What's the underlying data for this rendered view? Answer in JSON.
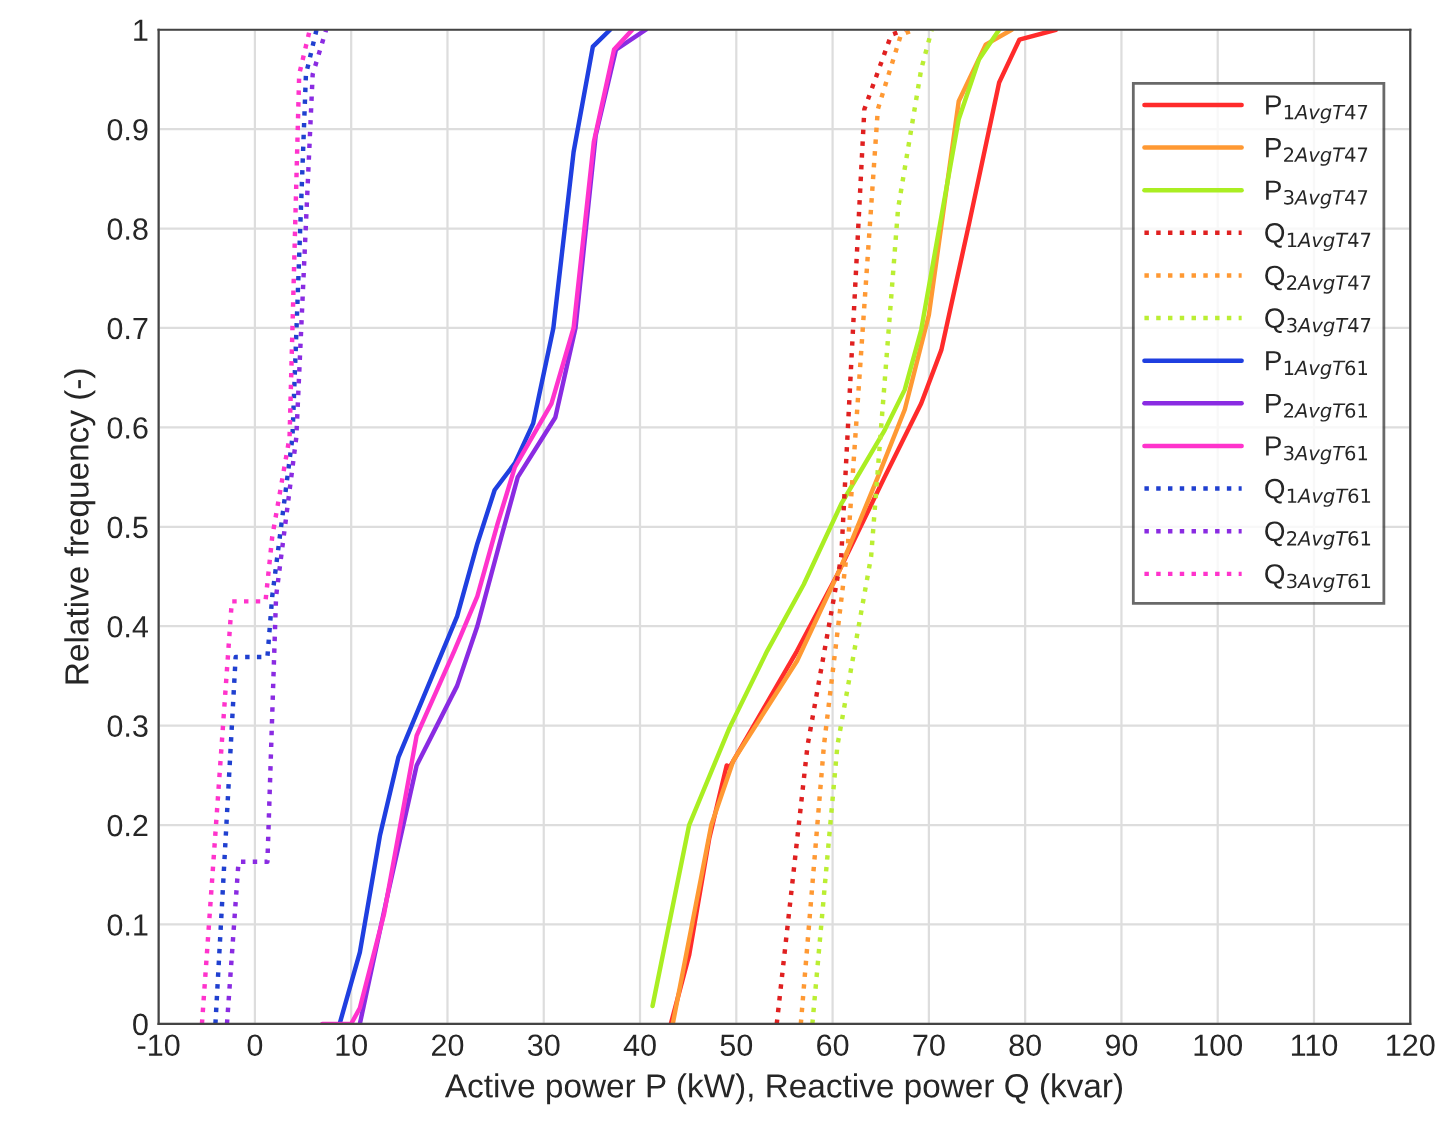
{
  "chart_data": {
    "type": "line",
    "xlabel": "Active power P (kW), Reactive power Q (kvar)",
    "ylabel": "Relative frequency (-)",
    "xlim": [
      -10,
      120
    ],
    "xticks": [
      -10,
      0,
      10,
      20,
      30,
      40,
      50,
      60,
      70,
      80,
      90,
      100,
      110,
      120
    ],
    "ylim": [
      0,
      1
    ],
    "yticks": [
      0,
      0.1,
      0.2,
      0.3,
      0.4,
      0.5,
      0.6,
      0.7,
      0.8,
      0.9,
      1
    ],
    "grid": true,
    "legend": "top right",
    "marker": "none",
    "series": [
      {
        "name": "P$_{1AvgT47}$",
        "color": "#ff2b2b",
        "line_style": "solid",
        "x": [
          43.2,
          45.1,
          47.2,
          49.0,
          49.3,
          56.3,
          60.5,
          65.4,
          69.2,
          71.3,
          74.2,
          77.3,
          79.4,
          83.2
        ],
        "values": [
          0,
          0.069,
          0.187,
          0.26,
          0.258,
          0.375,
          0.452,
          0.55,
          0.624,
          0.678,
          0.806,
          0.947,
          0.99,
          1
        ]
      },
      {
        "name": "P$_{2AvgT47}$",
        "color": "#ff9933",
        "line_style": "solid",
        "x": [
          43.4,
          47.4,
          49.7,
          56.3,
          60.8,
          64.7,
          67.5,
          70.0,
          73.1,
          75.9,
          78.6
        ],
        "values": [
          0,
          0.2,
          0.265,
          0.365,
          0.458,
          0.55,
          0.618,
          0.713,
          0.928,
          0.985,
          1
        ]
      },
      {
        "name": "P$_{3AvgT47}$",
        "color": "#aaee22",
        "line_style": "solid",
        "x": [
          41.3,
          45.1,
          49.3,
          53.2,
          57.0,
          60.9,
          65.4,
          67.5,
          69.2,
          73.1,
          75.2,
          77.3
        ],
        "values": [
          0.018,
          0.2,
          0.298,
          0.375,
          0.442,
          0.523,
          0.597,
          0.638,
          0.698,
          0.91,
          0.97,
          1
        ]
      },
      {
        "name": "Q$_{1AvgT47}$",
        "color": "#e02020",
        "line_style": "dotted",
        "x": [
          54.2,
          57.4,
          60.9,
          63.3,
          66.1,
          67.5
        ],
        "values": [
          0,
          0.28,
          0.47,
          0.92,
          0.995,
          1
        ]
      },
      {
        "name": "Q$_{2AvgT47}$",
        "color": "#ff9933",
        "line_style": "dotted",
        "x": [
          56.7,
          59.1,
          61.6,
          64.7,
          67.1,
          68.5
        ],
        "values": [
          0,
          0.28,
          0.483,
          0.92,
          0.995,
          1
        ]
      },
      {
        "name": "Q$_{3AvgT47}$",
        "color": "#bbee33",
        "line_style": "dotted",
        "x": [
          57.9,
          60.5,
          64.0,
          66.8,
          69.2,
          70.3
        ],
        "values": [
          0,
          0.28,
          0.47,
          0.82,
          0.96,
          1
        ]
      },
      {
        "name": "P$_{1AvgT61}$",
        "color": "#1f3fe0",
        "line_style": "solid",
        "x": [
          8.8,
          10.9,
          13.0,
          14.9,
          21.0,
          23.1,
          24.9,
          27.0,
          28.9,
          31.0,
          33.1,
          35.1,
          36.9
        ],
        "values": [
          0,
          0.072,
          0.19,
          0.268,
          0.41,
          0.483,
          0.537,
          0.564,
          0.604,
          0.7,
          0.877,
          0.983,
          1
        ]
      },
      {
        "name": "P$_{2AvgT61}$",
        "color": "#8a2be2",
        "line_style": "solid",
        "x": [
          10.9,
          13.7,
          16.8,
          21.0,
          23.1,
          25.6,
          27.3,
          31.2,
          33.3,
          35.4,
          37.5,
          40.6
        ],
        "values": [
          0,
          0.126,
          0.26,
          0.34,
          0.4,
          0.49,
          0.55,
          0.61,
          0.7,
          0.894,
          0.98,
          1
        ]
      },
      {
        "name": "P$_{3AvgT61}$",
        "color": "#ff33cc",
        "line_style": "solid",
        "x": [
          7.0,
          10.0,
          10.9,
          13.4,
          16.8,
          20.7,
          23.1,
          25.2,
          27.0,
          30.8,
          33.1,
          35.2,
          37.3,
          39.2
        ],
        "values": [
          0,
          0,
          0.016,
          0.11,
          0.29,
          0.375,
          0.43,
          0.503,
          0.56,
          0.624,
          0.7,
          0.887,
          0.98,
          1
        ]
      },
      {
        "name": "Q$_{1AvgT61}$",
        "color": "#2040d0",
        "line_style": "dotted",
        "x": [
          -4.1,
          -2.0,
          1.3,
          1.8,
          3.9,
          5.3,
          6.4
        ],
        "values": [
          0,
          0.369,
          0.369,
          0.43,
          0.59,
          0.955,
          1
        ]
      },
      {
        "name": "Q$_{2AvgT61}$",
        "color": "#8a2be2",
        "line_style": "dotted",
        "x": [
          -2.9,
          -1.7,
          1.3,
          2.2,
          4.3,
          6.0,
          7.4
        ],
        "values": [
          0,
          0.163,
          0.163,
          0.43,
          0.59,
          0.955,
          1
        ]
      },
      {
        "name": "Q$_{3AvgT61}$",
        "color": "#ff33cc",
        "line_style": "dotted",
        "x": [
          -5.5,
          -2.4,
          1.1,
          1.8,
          3.6,
          4.6,
          5.7
        ],
        "values": [
          0,
          0.425,
          0.425,
          0.49,
          0.59,
          0.955,
          1
        ]
      }
    ]
  }
}
